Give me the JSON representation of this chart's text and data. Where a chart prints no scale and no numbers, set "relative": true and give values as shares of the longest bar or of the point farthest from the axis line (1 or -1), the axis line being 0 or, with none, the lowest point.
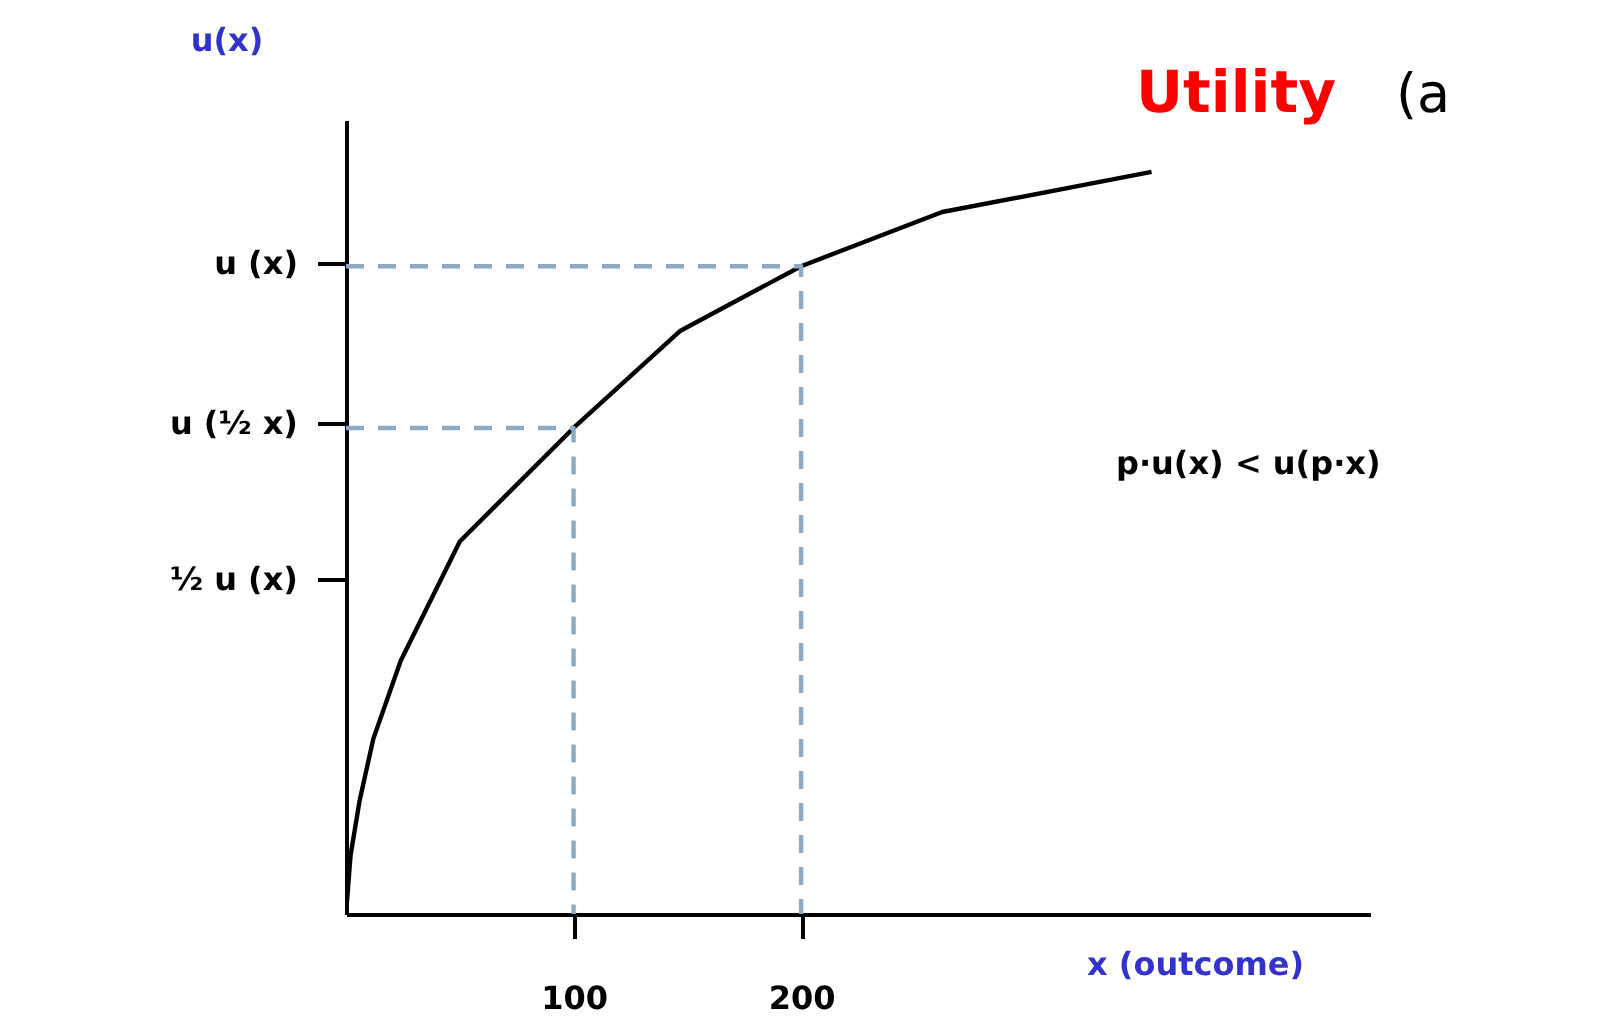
{
  "chart_data": {
    "type": "line",
    "relative": true,
    "title": "Utility",
    "subtitle": "(a",
    "xlabel": "x (outcome)",
    "ylabel": "u(x)",
    "annotations": [
      "½  u (x)",
      "u (½ x)",
      "u (x)",
      "p·u(x) < u(p·x)"
    ],
    "xlim": [
      0,
      450
    ],
    "xticks": [
      100,
      200
    ],
    "grid": false,
    "legend": false,
    "marker": "none",
    "series": [
      {
        "color": "#000000",
        "line_style": "solid",
        "x": [
          0,
          2,
          6,
          12,
          24,
          50,
          100,
          147,
          200,
          262,
          354
        ],
        "values": [
          0,
          0.079,
          0.153,
          0.236,
          0.341,
          0.502,
          0.655,
          0.786,
          0.873,
          0.946,
          1
        ]
      },
      {
        "color": "#8eaac2",
        "line_style": "dashed",
        "x": [
          0,
          100,
          100
        ],
        "values": [
          0.655,
          0.655,
          0
        ]
      },
      {
        "color": "#8eaac2",
        "line_style": "dashed",
        "x": [
          0,
          200,
          200
        ],
        "values": [
          0.873,
          0.873,
          0
        ]
      }
    ]
  }
}
